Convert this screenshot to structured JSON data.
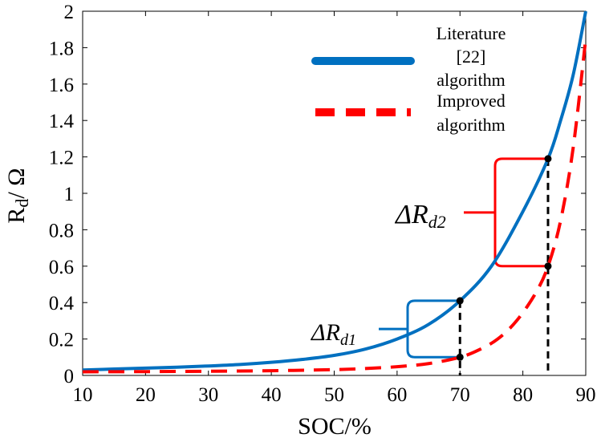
{
  "chart_data": {
    "type": "line",
    "title": "",
    "xlabel": "SOC/%",
    "ylabel_main": "R",
    "ylabel_sub": "d",
    "ylabel_tail": "/ Ω",
    "xlim": [
      10,
      90
    ],
    "ylim": [
      0,
      2
    ],
    "xticks": [
      "10",
      "20",
      "30",
      "40",
      "50",
      "60",
      "70",
      "80",
      "90"
    ],
    "yticks": [
      "0",
      "0.2",
      "0.4",
      "0.6",
      "0.8",
      "1",
      "1.2",
      "1.4",
      "1.6",
      "1.8",
      "2"
    ],
    "grid": false,
    "legend_position": "top-right",
    "series": [
      {
        "name": "Literature [22] algorithm",
        "legend_lines": [
          "Literature",
          "[22]",
          "algorithm"
        ],
        "color": "#0070C0",
        "style": "solid",
        "x": [
          10,
          15,
          20,
          25,
          30,
          35,
          40,
          45,
          50,
          55,
          60,
          65,
          70,
          75,
          80,
          84,
          86,
          88,
          90
        ],
        "y": [
          0.03,
          0.035,
          0.04,
          0.045,
          0.052,
          0.06,
          0.072,
          0.088,
          0.11,
          0.145,
          0.2,
          0.28,
          0.41,
          0.6,
          0.9,
          1.19,
          1.4,
          1.65,
          2.0
        ]
      },
      {
        "name": "Improved algorithm",
        "legend_lines": [
          "Improved",
          "algorithm"
        ],
        "color": "#FF0000",
        "style": "dashed",
        "x": [
          10,
          20,
          30,
          40,
          50,
          55,
          60,
          65,
          70,
          73,
          76,
          79,
          82,
          84,
          86,
          88,
          90
        ],
        "y": [
          0.02,
          0.021,
          0.023,
          0.026,
          0.032,
          0.038,
          0.048,
          0.065,
          0.1,
          0.14,
          0.2,
          0.3,
          0.45,
          0.6,
          0.85,
          1.25,
          1.85
        ]
      }
    ],
    "annotations": [
      {
        "label_main": "ΔR",
        "label_sub": "d1",
        "x": 70,
        "y_low": 0.1,
        "y_high": 0.41,
        "color": "#0070C0"
      },
      {
        "label_main": "ΔR",
        "label_sub": "d2",
        "x": 84,
        "y_low": 0.6,
        "y_high": 1.19,
        "color": "#FF0000"
      }
    ]
  }
}
